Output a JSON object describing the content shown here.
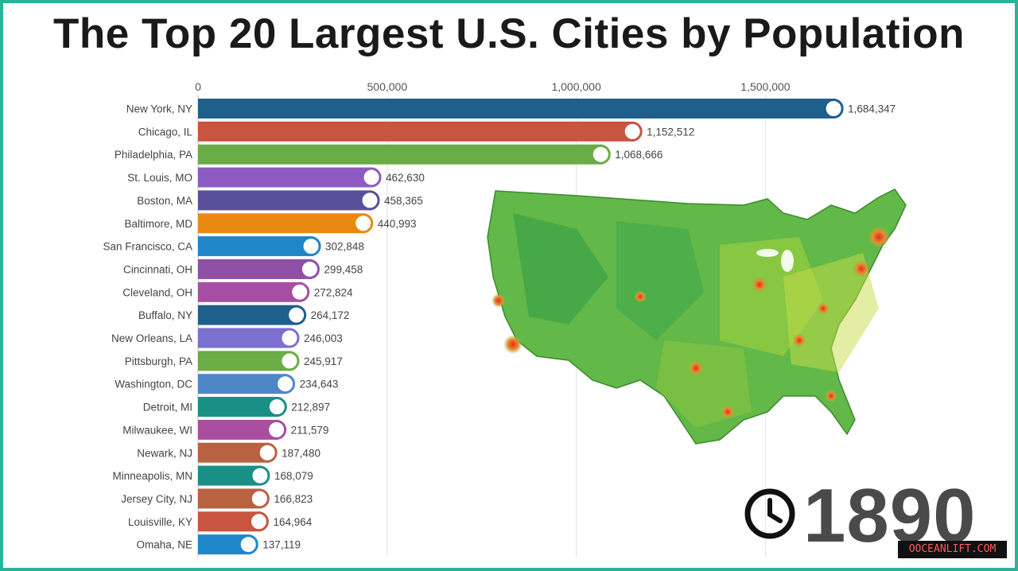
{
  "title": "The Top 20 Largest U.S. Cities by Population",
  "year": "1890",
  "watermark": "OOCEANLIFT.COM",
  "chart_data": {
    "type": "bar",
    "orientation": "horizontal",
    "title": "The Top 20 Largest U.S. Cities by Population",
    "xlim": [
      0,
      1700000
    ],
    "xticks": [
      0,
      500000,
      1000000,
      1500000
    ],
    "xtick_labels": [
      "0",
      "500,000",
      "1,000,000",
      "1,500,000"
    ],
    "categories": [
      "New York, NY",
      "Chicago, IL",
      "Philadelphia, PA",
      "St. Louis, MO",
      "Boston, MA",
      "Baltimore, MD",
      "San Francisco, CA",
      "Cincinnati, OH",
      "Cleveland, OH",
      "Buffalo, NY",
      "New Orleans, LA",
      "Pittsburgh, PA",
      "Washington, DC",
      "Detroit, MI",
      "Milwaukee, WI",
      "Newark, NJ",
      "Minneapolis, MN",
      "Jersey City, NJ",
      "Louisville, KY",
      "Omaha, NE"
    ],
    "values": [
      1684347,
      1152512,
      1068666,
      462630,
      458365,
      440993,
      302848,
      299458,
      272824,
      264172,
      246003,
      245917,
      234643,
      212897,
      211579,
      187480,
      168079,
      166823,
      164964,
      137119
    ],
    "value_labels": [
      "1,684,347",
      "1,152,512",
      "1,068,666",
      "462,630",
      "458,365",
      "440,993",
      "302,848",
      "299,458",
      "272,824",
      "264,172",
      "246,003",
      "245,917",
      "234,643",
      "212,897",
      "211,579",
      "187,480",
      "168,079",
      "166,823",
      "164,964",
      "137,119"
    ],
    "colors": [
      "#1f5f8b",
      "#c9543f",
      "#6aac45",
      "#8d5bc1",
      "#5a4f9a",
      "#e88a12",
      "#1e86c9",
      "#8e4fa5",
      "#a64ea3",
      "#1f5f8b",
      "#7b6fd0",
      "#6aac45",
      "#4f86c6",
      "#1a8f86",
      "#a94da1",
      "#b96242",
      "#1a8f86",
      "#b96242",
      "#c9543f",
      "#1e86c9"
    ],
    "grid": true
  }
}
